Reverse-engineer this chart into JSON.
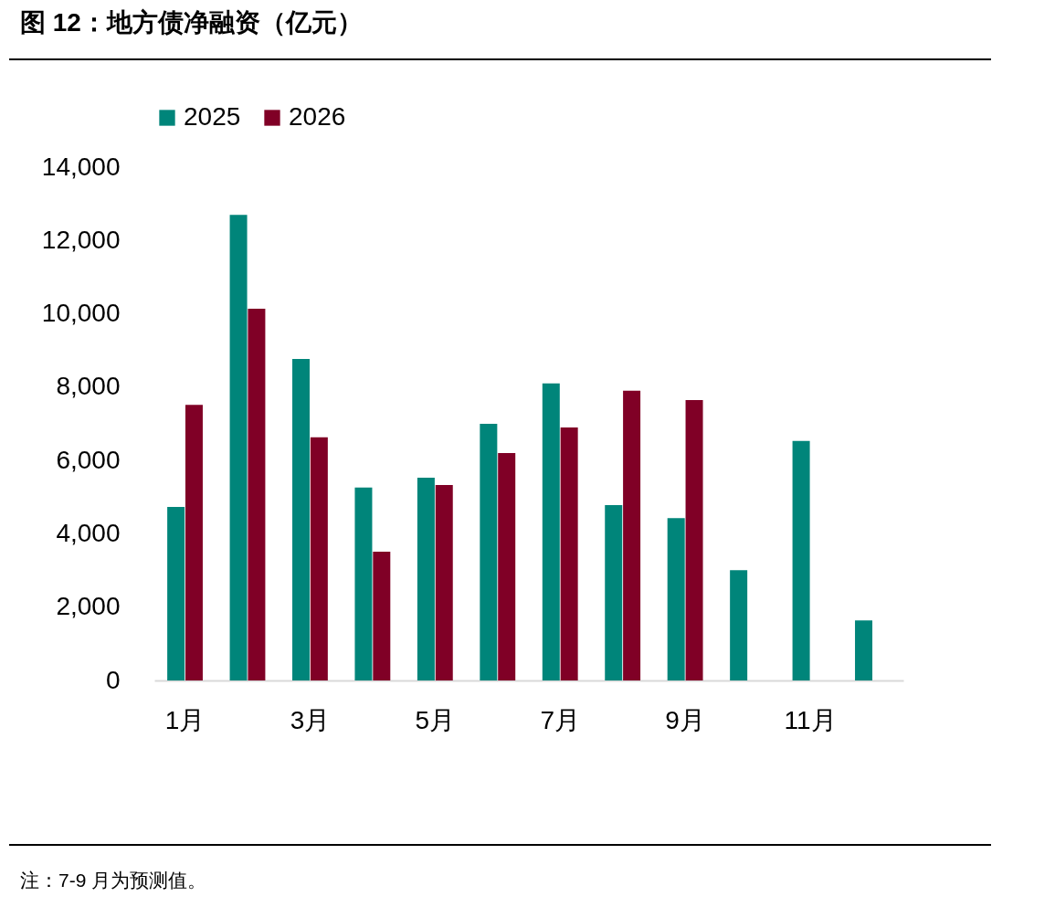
{
  "chart_data": {
    "type": "bar",
    "title": "图 12：地方债净融资（亿元）",
    "categories": [
      "1月",
      null,
      "3月",
      null,
      "5月",
      null,
      "7月",
      null,
      "9月",
      null,
      "11月",
      null
    ],
    "series": [
      {
        "name": "2025",
        "color": "#00857a",
        "values": [
          4730,
          12700,
          8770,
          5260,
          5530,
          7000,
          8100,
          4780,
          4430,
          3010,
          6530,
          1640
        ]
      },
      {
        "name": "2026",
        "color": "#800026",
        "values": [
          7520,
          10140,
          6630,
          3510,
          5330,
          6200,
          6900,
          7900,
          7650,
          null,
          null,
          null
        ]
      }
    ],
    "ylim": [
      0,
      14000
    ],
    "yticks": [
      0,
      {
        "value": 2000,
        "label": "2,000"
      },
      {
        "value": 4000,
        "label": "4,000"
      },
      {
        "value": 6000,
        "label": "6,000"
      },
      {
        "value": 8000,
        "label": "8,000"
      },
      {
        "value": 10000,
        "label": "10,000"
      },
      {
        "value": 12000,
        "label": "12,000"
      },
      {
        "value": 14000,
        "label": "14,000"
      }
    ],
    "grid": false,
    "legend": "top",
    "annotations": [
      "注：7-9 月为预测值。"
    ]
  }
}
